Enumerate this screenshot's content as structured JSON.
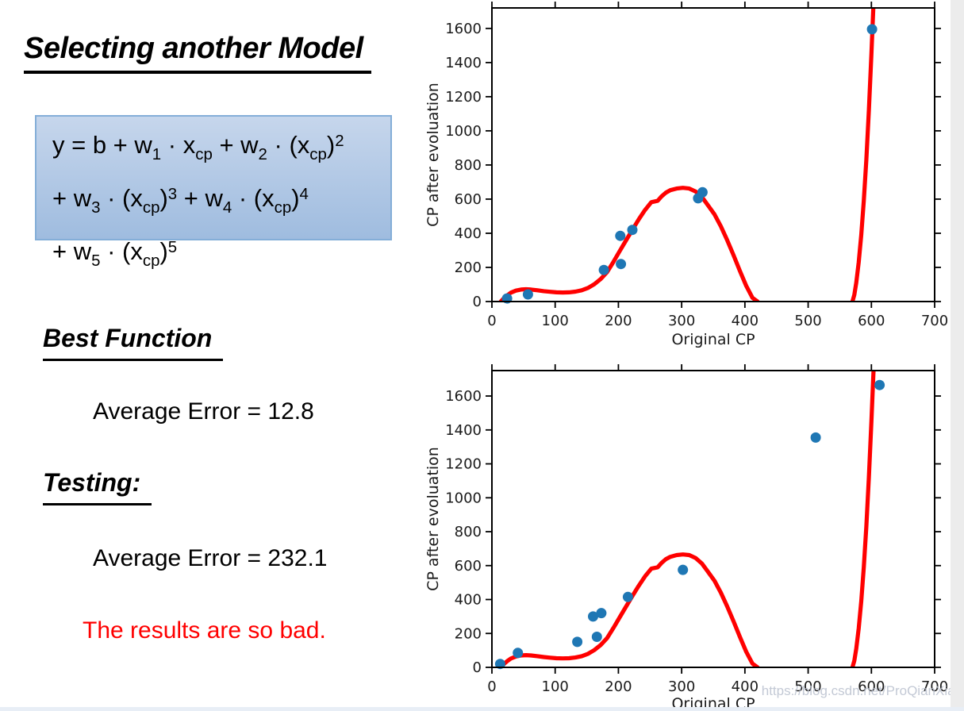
{
  "page": {
    "background": "#ffffff",
    "right_strip_color": "#ececec",
    "bottom_strip_color": "#e8eef6"
  },
  "slide": {
    "title": "Selecting another Model",
    "formula_lines": [
      [
        {
          "t": "y = b + w"
        },
        {
          "sub": "1"
        },
        {
          "t": " · x"
        },
        {
          "sub": "cp"
        },
        {
          "t": " + w"
        },
        {
          "sub": "2"
        },
        {
          "t": " · (x"
        },
        {
          "sub": "cp"
        },
        {
          "t": ")"
        },
        {
          "sup": "2"
        }
      ],
      [
        {
          "t": "+ w"
        },
        {
          "sub": "3"
        },
        {
          "t": " · (x"
        },
        {
          "sub": "cp"
        },
        {
          "t": ")"
        },
        {
          "sup": "3"
        },
        {
          "t": " + w"
        },
        {
          "sub": "4"
        },
        {
          "t": " · (x"
        },
        {
          "sub": "cp"
        },
        {
          "t": ")"
        },
        {
          "sup": "4"
        }
      ],
      [
        {
          "t": "+ w"
        },
        {
          "sub": "5"
        },
        {
          "t": " · (x"
        },
        {
          "sub": "cp"
        },
        {
          "t": ")"
        },
        {
          "sup": "5"
        }
      ]
    ],
    "formula_box_colors": {
      "bg_top": "#c6d6ec",
      "bg_bottom": "#9fbcdf",
      "border": "#84aed8"
    },
    "best_function_heading": "Best Function",
    "best_function_error": "Average Error = 12.8",
    "testing_heading": "Testing:",
    "testing_error": "Average Error = 232.1",
    "remark": "The results are so bad.",
    "remark_color": "#ff0000"
  },
  "watermark": "https://blog.csdn.net/ProQianXiao",
  "chart_data": [
    {
      "type": "scatter",
      "name": "training-fit-chart",
      "xlabel": "Original CP",
      "ylabel": "CP after evoluation",
      "xlim": [
        0,
        700
      ],
      "ylim": [
        0,
        1720
      ],
      "xticks": [
        0,
        100,
        200,
        300,
        400,
        500,
        600,
        700
      ],
      "yticks": [
        0,
        200,
        400,
        600,
        800,
        1000,
        1200,
        1400,
        1600
      ],
      "point_color": "#1f77b4",
      "curve_color": "#ff0000",
      "points": [
        [
          24,
          18
        ],
        [
          57,
          42
        ],
        [
          177,
          185
        ],
        [
          203,
          385
        ],
        [
          204,
          220
        ],
        [
          222,
          420
        ],
        [
          326,
          605
        ],
        [
          333,
          640
        ],
        [
          601,
          1595
        ]
      ],
      "curve_segments": [
        [
          [
            14,
            0
          ],
          [
            18,
            16
          ],
          [
            24,
            36
          ],
          [
            30,
            52
          ],
          [
            38,
            64
          ],
          [
            46,
            70
          ],
          [
            54,
            72
          ],
          [
            62,
            70
          ],
          [
            72,
            66
          ],
          [
            82,
            61
          ],
          [
            92,
            57
          ],
          [
            102,
            54
          ],
          [
            112,
            53
          ],
          [
            122,
            54
          ],
          [
            132,
            58
          ],
          [
            142,
            66
          ],
          [
            152,
            80
          ],
          [
            162,
            102
          ],
          [
            172,
            132
          ],
          [
            182,
            172
          ],
          [
            192,
            232
          ],
          [
            202,
            295
          ],
          [
            212,
            358
          ],
          [
            222,
            420
          ],
          [
            232,
            480
          ],
          [
            242,
            536
          ],
          [
            252,
            582
          ],
          [
            262,
            590
          ],
          [
            268,
            615
          ],
          [
            275,
            638
          ],
          [
            282,
            652
          ],
          [
            292,
            662
          ],
          [
            302,
            666
          ],
          [
            312,
            662
          ],
          [
            322,
            645
          ],
          [
            332,
            612
          ],
          [
            342,
            562
          ],
          [
            352,
            510
          ],
          [
            362,
            440
          ],
          [
            372,
            360
          ],
          [
            382,
            272
          ],
          [
            392,
            180
          ],
          [
            402,
            92
          ],
          [
            412,
            22
          ],
          [
            420,
            0
          ]
        ],
        [
          [
            570,
            0
          ],
          [
            573,
            40
          ],
          [
            576,
            110
          ],
          [
            580,
            230
          ],
          [
            584,
            390
          ],
          [
            588,
            590
          ],
          [
            592,
            830
          ],
          [
            596,
            1120
          ],
          [
            600,
            1450
          ],
          [
            603,
            1720
          ],
          [
            605,
            1900
          ]
        ]
      ]
    },
    {
      "type": "scatter",
      "name": "testing-fit-chart",
      "xlabel": "Original CP",
      "ylabel": "CP after evoluation",
      "xlim": [
        0,
        700
      ],
      "ylim": [
        0,
        1750
      ],
      "xticks": [
        0,
        100,
        200,
        300,
        400,
        500,
        600,
        700
      ],
      "yticks": [
        0,
        200,
        400,
        600,
        800,
        1000,
        1200,
        1400,
        1600
      ],
      "point_color": "#1f77b4",
      "curve_color": "#ff0000",
      "points": [
        [
          13,
          20
        ],
        [
          41,
          85
        ],
        [
          135,
          150
        ],
        [
          160,
          300
        ],
        [
          166,
          180
        ],
        [
          173,
          320
        ],
        [
          215,
          415
        ],
        [
          302,
          575
        ],
        [
          512,
          1355
        ],
        [
          613,
          1665
        ]
      ],
      "curve_segments": [
        [
          [
            14,
            0
          ],
          [
            18,
            16
          ],
          [
            24,
            36
          ],
          [
            30,
            52
          ],
          [
            38,
            64
          ],
          [
            46,
            70
          ],
          [
            54,
            72
          ],
          [
            62,
            70
          ],
          [
            72,
            66
          ],
          [
            82,
            61
          ],
          [
            92,
            57
          ],
          [
            102,
            54
          ],
          [
            112,
            53
          ],
          [
            122,
            54
          ],
          [
            132,
            58
          ],
          [
            142,
            66
          ],
          [
            152,
            80
          ],
          [
            162,
            102
          ],
          [
            172,
            132
          ],
          [
            182,
            172
          ],
          [
            192,
            232
          ],
          [
            202,
            295
          ],
          [
            212,
            358
          ],
          [
            222,
            420
          ],
          [
            232,
            480
          ],
          [
            242,
            536
          ],
          [
            252,
            582
          ],
          [
            262,
            590
          ],
          [
            268,
            615
          ],
          [
            275,
            638
          ],
          [
            282,
            652
          ],
          [
            292,
            662
          ],
          [
            302,
            666
          ],
          [
            312,
            662
          ],
          [
            322,
            645
          ],
          [
            332,
            612
          ],
          [
            342,
            562
          ],
          [
            352,
            510
          ],
          [
            362,
            440
          ],
          [
            372,
            360
          ],
          [
            382,
            272
          ],
          [
            392,
            180
          ],
          [
            402,
            92
          ],
          [
            412,
            22
          ],
          [
            420,
            0
          ]
        ],
        [
          [
            570,
            0
          ],
          [
            573,
            40
          ],
          [
            576,
            110
          ],
          [
            580,
            230
          ],
          [
            584,
            390
          ],
          [
            588,
            590
          ],
          [
            592,
            830
          ],
          [
            596,
            1120
          ],
          [
            600,
            1450
          ],
          [
            603,
            1720
          ],
          [
            606,
            1960
          ]
        ]
      ]
    }
  ]
}
